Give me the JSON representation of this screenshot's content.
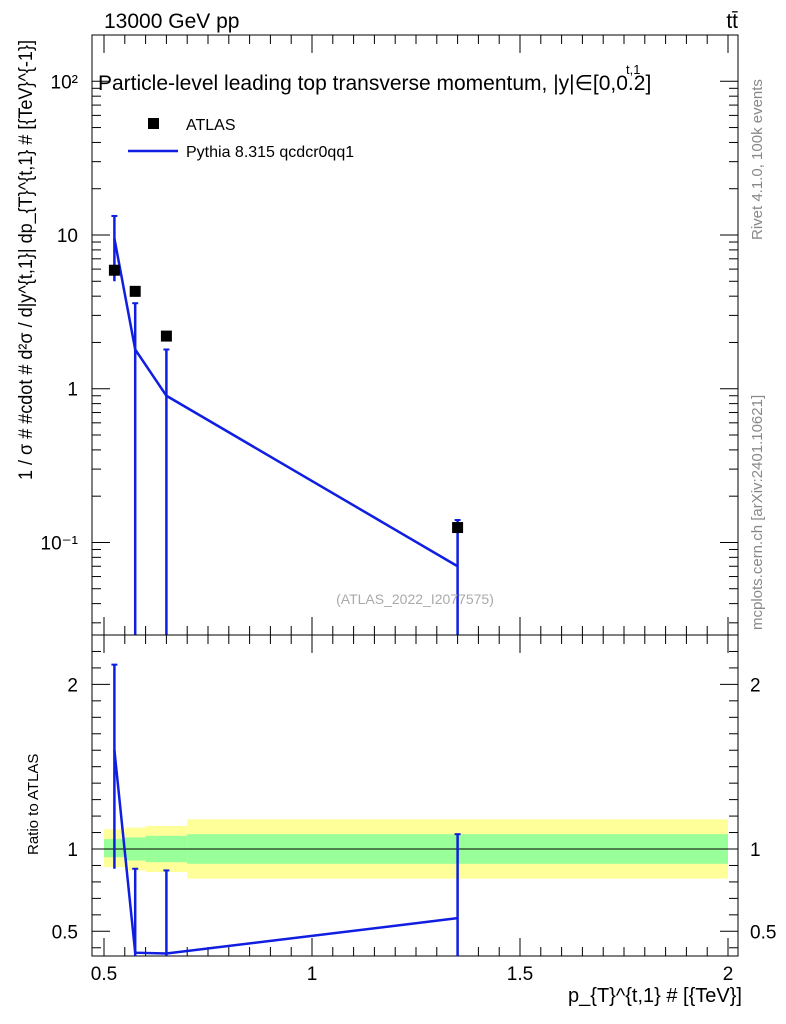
{
  "header": {
    "energy_label": "13000 GeV pp",
    "process_label": "tt̄",
    "side_label_top": "Rivet 4.1.0,  100k events",
    "side_label_bottom": "mcplots.cern.ch [arXiv:2401.10621]",
    "analysis_label": "(ATLAS_2022_I2077575)"
  },
  "chart_data": [
    {
      "type": "scatter",
      "title": "Particle-level leading top transverse momentum, |y|∈[0,0.2]",
      "title_superscript": "t,1",
      "ylabel": "1 / σ # #cdot # d²σ / d|y^{t,1}| dp_{T}^{t,1} # [{TeV}^{-1}]",
      "yscale": "log",
      "xlim": [
        0.5,
        2.0
      ],
      "ylim": [
        0.025,
        200
      ],
      "y_ticks": [
        "10⁻¹",
        "1",
        "10",
        "10²"
      ],
      "legend_position": "top-left",
      "series": [
        {
          "name": "ATLAS",
          "style": "markers",
          "color": "#000000",
          "points": [
            {
              "x": 0.525,
              "y": 5.9
            },
            {
              "x": 0.575,
              "y": 4.3
            },
            {
              "x": 0.65,
              "y": 2.2
            },
            {
              "x": 1.35,
              "y": 0.125
            }
          ]
        },
        {
          "name": "Pythia 8.315 qcdcr0qq1",
          "style": "line",
          "color": "#0f1ee0",
          "points": [
            {
              "x": 0.525,
              "y": 9.5,
              "ylo": 5.0,
              "yhi": 13.3
            },
            {
              "x": 0.575,
              "y": 1.8,
              "ylo": 0.0,
              "yhi": 3.6
            },
            {
              "x": 0.65,
              "y": 0.9,
              "ylo": 0.0,
              "yhi": 1.8
            },
            {
              "x": 1.35,
              "y": 0.07,
              "ylo": 0.0,
              "yhi": 0.14
            }
          ]
        }
      ]
    },
    {
      "type": "line",
      "ylabel": "Ratio to ATLAS",
      "xlabel": "p_{T}^{t,1} # [{TeV}]",
      "xlim": [
        0.5,
        2.0
      ],
      "ylim": [
        0.35,
        2.3
      ],
      "x_ticks": [
        "0.5",
        "1",
        "1.5",
        "2"
      ],
      "y_ticks": [
        "0.5",
        "1",
        "2"
      ],
      "reference_line": 1.0,
      "bands": [
        {
          "x0": 0.5,
          "x1": 0.55,
          "inner": [
            0.95,
            1.06
          ],
          "outer": [
            0.89,
            1.12
          ]
        },
        {
          "x0": 0.55,
          "x1": 0.6,
          "inner": [
            0.93,
            1.07
          ],
          "outer": [
            0.87,
            1.13
          ]
        },
        {
          "x0": 0.6,
          "x1": 0.7,
          "inner": [
            0.92,
            1.08
          ],
          "outer": [
            0.86,
            1.14
          ]
        },
        {
          "x0": 0.7,
          "x1": 2.0,
          "inner": [
            0.91,
            1.09
          ],
          "outer": [
            0.82,
            1.18
          ]
        }
      ],
      "band_colors": {
        "inner": "#99ff99",
        "outer": "#ffff99"
      },
      "series": [
        {
          "name": "Pythia 8.315 qcdcr0qq1",
          "color": "#0f1ee0",
          "points": [
            {
              "x": 0.525,
              "y": 1.6,
              "ylo": 0.88,
              "yhi": 2.12
            },
            {
              "x": 0.575,
              "y": 0.37,
              "ylo": 0.0,
              "yhi": 0.88
            },
            {
              "x": 0.65,
              "y": 0.365,
              "ylo": 0.0,
              "yhi": 0.87
            },
            {
              "x": 1.35,
              "y": 0.58,
              "ylo": 0.0,
              "yhi": 1.09
            }
          ]
        }
      ]
    }
  ]
}
